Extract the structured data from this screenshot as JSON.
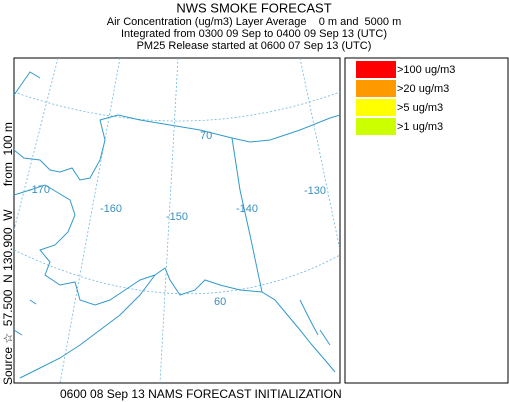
{
  "header": {
    "title": "NWS SMOKE FORECAST",
    "subtitle_lines": [
      "Air Concentration (ug/m3) Layer Average    0 m and  5000 m",
      "Integrated from 0300 09 Sep to 0400 09 Sep 13 (UTC)",
      "PM25 Release started at 0600 07 Sep 13 (UTC)"
    ]
  },
  "side_label": "Source ☆  57.500  N 130.900  W       from  100 m",
  "map": {
    "labels": [
      "-170",
      "-160",
      "-150",
      "-140",
      "-130",
      "70",
      "60"
    ]
  },
  "legend": {
    "items": [
      {
        "label": ">100 ug/m3",
        "color": "#ff0000"
      },
      {
        "label": ">20 ug/m3",
        "color": "#ff9900"
      },
      {
        "label": ">5 ug/m3",
        "color": "#ffff00"
      },
      {
        "label": ">1 ug/m3",
        "color": "#ccff00"
      }
    ]
  },
  "footer": "0600 08 Sep 13 NAMS FORECAST INITIALIZATION"
}
